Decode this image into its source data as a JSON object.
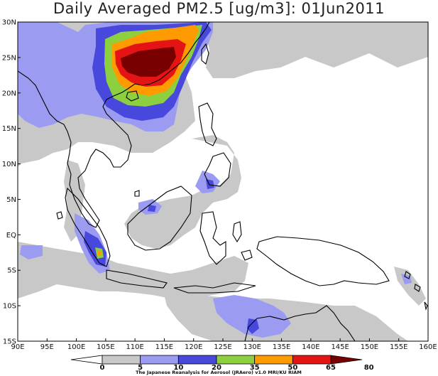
{
  "title": "Daily Averaged PM2.5 [ug/m3]: 01Jun2011",
  "lat_labels": [
    "30N",
    "25N",
    "20N",
    "15N",
    "10N",
    "5N",
    "EQ",
    "5S",
    "10S",
    "15S"
  ],
  "lon_labels": [
    "90E",
    "95E",
    "100E",
    "105E",
    "110E",
    "115E",
    "120E",
    "125E",
    "130E",
    "135E",
    "140E",
    "145E",
    "150E",
    "155E",
    "160E"
  ],
  "colorbar": {
    "ticks": [
      "0",
      "5",
      "10",
      "20",
      "35",
      "50",
      "65",
      "80"
    ],
    "colors": [
      "#ffffff",
      "#c8c8c8",
      "#9b9bf2",
      "#4848dc",
      "#8cd040",
      "#ff9b00",
      "#e51414",
      "#780000"
    ]
  },
  "credit": "The Japanese Reanalysis for Aerosol (JRAero) v1.0 MRI/KU RIAM"
}
